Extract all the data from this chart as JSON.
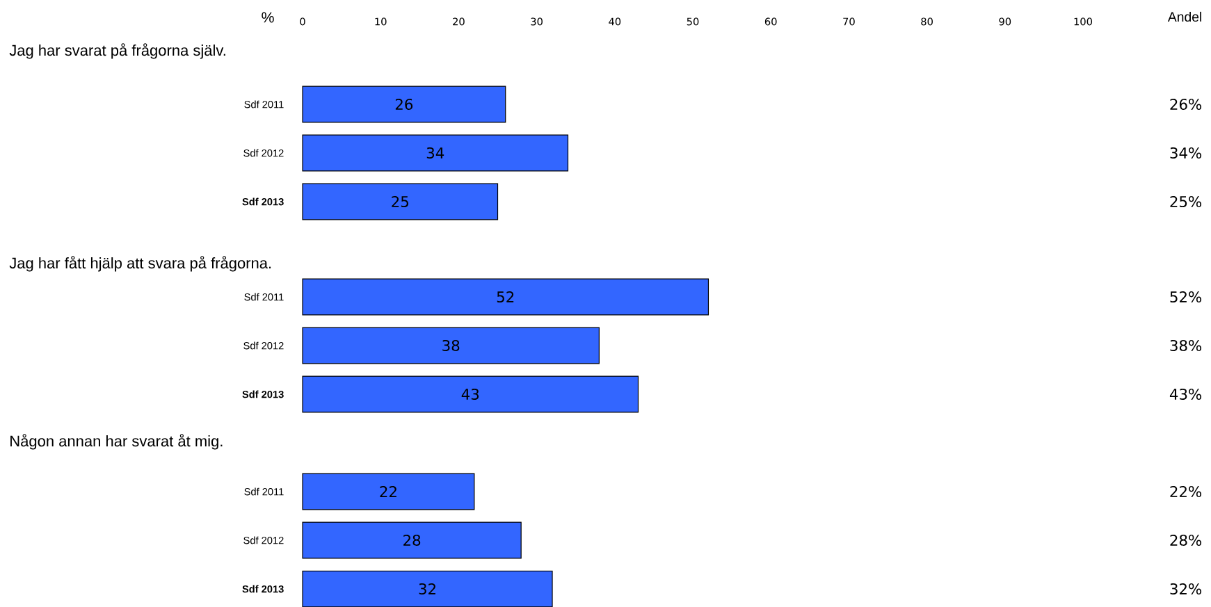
{
  "chart_data": [
    {
      "type": "bar",
      "orientation": "horizontal",
      "title": "Jag har svarat på frågorna själv.",
      "xlabel": "%",
      "y2label": "Andel",
      "annotations": [
        "26%",
        "34%",
        "25%"
      ],
      "categories": [
        "Sdf 2011",
        "Sdf 2012",
        "**Sdf 2013**"
      ],
      "values": [
        26,
        34,
        25
      ],
      "value_labels": [
        "26",
        "34",
        "25"
      ],
      "color": "#3366ff",
      "xlim": [
        0,
        100
      ],
      "xticks": [
        0,
        10,
        20,
        30,
        40,
        50,
        60,
        70,
        80,
        90,
        100
      ]
    },
    {
      "type": "bar",
      "orientation": "horizontal",
      "title": "Jag har fått hjälp att svara på frågorna.",
      "annotations": [
        "52%",
        "38%",
        "43%"
      ],
      "categories": [
        "Sdf 2011",
        "Sdf 2012",
        "**Sdf 2013**"
      ],
      "values": [
        52,
        38,
        43
      ],
      "value_labels": [
        "52",
        "38",
        "43"
      ],
      "color": "#3366ff",
      "xlim": [
        0,
        100
      ],
      "tick_labels": "y"
    },
    {
      "type": "bar",
      "orientation": "horizontal",
      "title": "Någon annan har svarat åt mig.",
      "annotations": [
        "22%",
        "28%",
        "32%"
      ],
      "categories": [
        "Sdf 2011",
        "Sdf 2012",
        "**Sdf 2013**"
      ],
      "values": [
        22,
        28,
        32
      ],
      "value_labels": [
        "22",
        "28",
        "32"
      ],
      "color": "#3366ff",
      "xlim": [
        0,
        100
      ],
      "tick_labels": "y"
    }
  ]
}
